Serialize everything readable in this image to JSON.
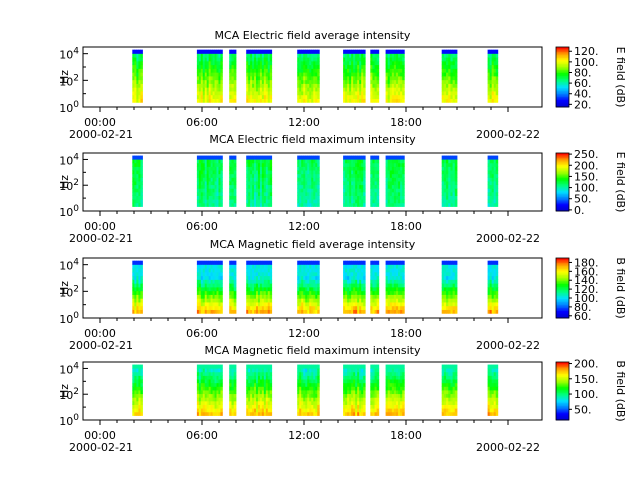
{
  "chart_data": [
    {
      "type": "heatmap",
      "title": "MCA  Electric field average intensity",
      "ylabel": "Hz",
      "ylim_exponents": [
        0,
        4.5
      ],
      "yticks": [
        {
          "base": "10",
          "exp": "0"
        },
        {
          "base": "10",
          "exp": "2"
        },
        {
          "base": "10",
          "exp": "4"
        }
      ],
      "xticks": [
        "00:00",
        "06:00",
        "12:00",
        "18:00",
        ""
      ],
      "xlim_hours": [
        -1,
        26
      ],
      "date_start": "2000-02-21",
      "date_end": "2000-02-22",
      "colorbar": {
        "label": "E field (dB)",
        "range": [
          15,
          128
        ],
        "ticks": [
          "20.",
          "40.",
          "60.",
          "80.",
          "100.",
          "120."
        ],
        "tick_values": [
          20,
          40,
          60,
          80,
          100,
          120
        ]
      },
      "profile": "avgE",
      "data_gaps_present": true
    },
    {
      "type": "heatmap",
      "title": "MCA  Electric field maximum intensity",
      "ylabel": "Hz",
      "ylim_exponents": [
        0,
        4.5
      ],
      "yticks": [
        {
          "base": "10",
          "exp": "0"
        },
        {
          "base": "10",
          "exp": "2"
        },
        {
          "base": "10",
          "exp": "4"
        }
      ],
      "xticks": [
        "00:00",
        "06:00",
        "12:00",
        "18:00",
        ""
      ],
      "xlim_hours": [
        -1,
        26
      ],
      "date_start": "2000-02-21",
      "date_end": "2000-02-22",
      "colorbar": {
        "label": "E field (dB)",
        "range": [
          -5,
          255
        ],
        "ticks": [
          "0.",
          "50.",
          "100.",
          "150.",
          "200.",
          "250."
        ],
        "tick_values": [
          0,
          50,
          100,
          150,
          200,
          250
        ]
      },
      "profile": "maxE",
      "data_gaps_present": true
    },
    {
      "type": "heatmap",
      "title": "MCA  Magnetic field average intensity",
      "ylabel": "Hz",
      "ylim_exponents": [
        0,
        4.5
      ],
      "yticks": [
        {
          "base": "10",
          "exp": "0"
        },
        {
          "base": "10",
          "exp": "2"
        },
        {
          "base": "10",
          "exp": "4"
        }
      ],
      "xticks": [
        "00:00",
        "06:00",
        "12:00",
        "18:00",
        ""
      ],
      "xlim_hours": [
        -1,
        26
      ],
      "date_start": "2000-02-21",
      "date_end": "2000-02-22",
      "colorbar": {
        "label": "B field (dB)",
        "range": [
          55,
          190
        ],
        "ticks": [
          "60.",
          "80.",
          "100.",
          "120.",
          "140.",
          "160.",
          "180."
        ],
        "tick_values": [
          60,
          80,
          100,
          120,
          140,
          160,
          180
        ]
      },
      "profile": "avgB",
      "data_gaps_present": true
    },
    {
      "type": "heatmap",
      "title": "MCA  Magnetic field maximum intensity",
      "ylabel": "Hz",
      "ylim_exponents": [
        0,
        4.5
      ],
      "yticks": [
        {
          "base": "10",
          "exp": "0"
        },
        {
          "base": "10",
          "exp": "2"
        },
        {
          "base": "10",
          "exp": "4"
        }
      ],
      "xticks": [
        "00:00",
        "06:00",
        "12:00",
        "18:00",
        ""
      ],
      "xlim_hours": [
        -1,
        26
      ],
      "date_start": "2000-02-21",
      "date_end": "2000-02-22",
      "colorbar": {
        "label": "B field (dB)",
        "range": [
          15,
          205
        ],
        "ticks": [
          "50.",
          "100.",
          "150.",
          "200."
        ],
        "tick_values": [
          50,
          100,
          150,
          200
        ]
      },
      "profile": "maxB",
      "data_gaps_present": true
    }
  ],
  "data_segments_hours": [
    [
      1.9,
      2.5
    ],
    [
      5.7,
      7.2
    ],
    [
      7.6,
      8.0
    ],
    [
      8.6,
      10.1
    ],
    [
      11.6,
      12.9
    ],
    [
      14.3,
      15.6
    ],
    [
      15.9,
      16.4
    ],
    [
      16.8,
      17.9
    ],
    [
      20.1,
      21.0
    ],
    [
      22.8,
      23.4
    ]
  ],
  "colormap": [
    "#0000c8",
    "#0000ff",
    "#0080ff",
    "#00e0ff",
    "#00ff80",
    "#00ff00",
    "#a0ff00",
    "#ffff00",
    "#ffa000",
    "#ff0000"
  ]
}
